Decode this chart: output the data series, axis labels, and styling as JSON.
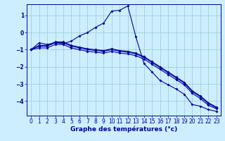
{
  "xlabel": "Graphe des températures (°c)",
  "bg_color": "#cceeff",
  "grid_color": "#99cccc",
  "line_color": "#000099",
  "spine_color": "#000099",
  "xlim": [
    -0.5,
    23.5
  ],
  "ylim": [
    -4.85,
    1.65
  ],
  "xticks": [
    0,
    1,
    2,
    3,
    4,
    5,
    6,
    7,
    8,
    9,
    10,
    11,
    12,
    13,
    14,
    15,
    16,
    17,
    18,
    19,
    20,
    21,
    22,
    23
  ],
  "yticks": [
    -4,
    -3,
    -2,
    -1,
    0,
    1
  ],
  "series1_x": [
    0,
    1,
    2,
    3,
    4,
    5,
    6,
    7,
    8,
    9,
    10,
    11,
    12,
    13,
    14,
    15,
    16,
    17,
    18,
    19,
    20,
    21,
    22,
    23
  ],
  "series1_y": [
    -1.0,
    -0.6,
    -0.7,
    -0.6,
    -0.65,
    -0.5,
    -0.2,
    0.0,
    0.3,
    0.55,
    1.25,
    1.3,
    1.55,
    -0.25,
    -1.8,
    -2.3,
    -2.8,
    -3.05,
    -3.3,
    -3.6,
    -4.2,
    -4.3,
    -4.5,
    -4.6
  ],
  "series2_x": [
    0,
    1,
    2,
    3,
    4,
    5,
    6,
    7,
    8,
    9,
    10,
    11,
    12,
    13,
    14,
    15,
    16,
    17,
    18,
    19,
    20,
    21,
    22,
    23
  ],
  "series2_y": [
    -1.0,
    -0.75,
    -0.75,
    -0.55,
    -0.55,
    -0.75,
    -0.85,
    -0.95,
    -1.0,
    -1.05,
    -0.95,
    -1.05,
    -1.1,
    -1.2,
    -1.4,
    -1.7,
    -2.0,
    -2.3,
    -2.6,
    -2.9,
    -3.4,
    -3.7,
    -4.1,
    -4.35
  ],
  "series3_x": [
    0,
    1,
    2,
    3,
    4,
    5,
    6,
    7,
    8,
    9,
    10,
    11,
    12,
    13,
    14,
    15,
    16,
    17,
    18,
    19,
    20,
    21,
    22,
    23
  ],
  "series3_y": [
    -1.0,
    -0.8,
    -0.8,
    -0.6,
    -0.6,
    -0.8,
    -0.9,
    -1.0,
    -1.05,
    -1.1,
    -1.0,
    -1.1,
    -1.15,
    -1.25,
    -1.45,
    -1.75,
    -2.05,
    -2.35,
    -2.65,
    -2.95,
    -3.45,
    -3.75,
    -4.15,
    -4.4
  ],
  "series4_x": [
    0,
    1,
    2,
    3,
    4,
    5,
    6,
    7,
    8,
    9,
    10,
    11,
    12,
    13,
    14,
    15,
    16,
    17,
    18,
    19,
    20,
    21,
    22,
    23
  ],
  "series4_y": [
    -1.0,
    -0.9,
    -0.9,
    -0.7,
    -0.7,
    -0.9,
    -1.0,
    -1.1,
    -1.15,
    -1.2,
    -1.1,
    -1.2,
    -1.25,
    -1.35,
    -1.55,
    -1.85,
    -2.15,
    -2.45,
    -2.75,
    -3.05,
    -3.55,
    -3.85,
    -4.25,
    -4.45
  ],
  "tick_fontsize": 5.5,
  "xlabel_fontsize": 6.5,
  "lw": 0.8,
  "ms": 2.0
}
